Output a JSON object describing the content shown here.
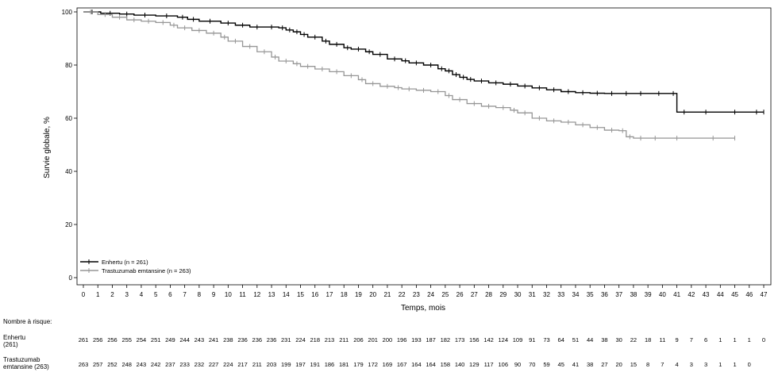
{
  "chart_data": {
    "type": "line",
    "title": "",
    "xlabel": "Temps, mois",
    "ylabel": "Survie globale, %",
    "xlim": [
      0,
      47
    ],
    "ylim": [
      0,
      100
    ],
    "xticks": [
      0,
      1,
      2,
      3,
      4,
      5,
      6,
      7,
      8,
      9,
      10,
      11,
      12,
      13,
      14,
      15,
      16,
      17,
      18,
      19,
      20,
      21,
      22,
      23,
      24,
      25,
      26,
      27,
      28,
      29,
      30,
      31,
      32,
      33,
      34,
      35,
      36,
      37,
      38,
      39,
      40,
      41,
      42,
      43,
      44,
      45,
      46,
      47
    ],
    "yticks": [
      0,
      20,
      40,
      60,
      80,
      100
    ],
    "grid": false,
    "legend_position": "bottom-left",
    "series": [
      {
        "name": "Enhertu (n = 261)",
        "color": "#000000",
        "x": [
          0,
          1.2,
          2.5,
          3.5,
          5.0,
          6.5,
          7.2,
          8.0,
          9.5,
          10.5,
          11.5,
          12.5,
          13.5,
          14.0,
          14.5,
          15.0,
          15.5,
          16.5,
          17.0,
          18.0,
          18.5,
          19.5,
          20.0,
          21.0,
          22.0,
          22.5,
          23.5,
          24.5,
          25.0,
          25.5,
          26.0,
          26.5,
          27.0,
          28.0,
          29.0,
          30.0,
          31.0,
          32.0,
          33.0,
          34.0,
          35.0,
          36.0,
          37.0,
          38.0,
          39.0,
          40.5,
          41.0,
          42.0,
          44.0,
          46.0,
          47.0
        ],
        "y": [
          100,
          99.5,
          99.2,
          98.8,
          98.5,
          98.0,
          97.2,
          96.5,
          95.8,
          95.0,
          94.3,
          94.3,
          94.0,
          93.2,
          92.5,
          91.5,
          90.5,
          89.0,
          87.8,
          86.5,
          86.0,
          85.0,
          84.0,
          82.3,
          81.6,
          80.8,
          80.0,
          78.6,
          77.8,
          76.4,
          75.4,
          74.6,
          74.0,
          73.3,
          72.8,
          72.1,
          71.4,
          70.7,
          70.0,
          69.6,
          69.4,
          69.3,
          69.3,
          69.3,
          69.3,
          69.3,
          62.3,
          62.3,
          62.3,
          62.3,
          62.3
        ]
      },
      {
        "name": "Trastuzumab emtansine (n = 263)",
        "color": "#969696",
        "x": [
          0,
          1.0,
          2.0,
          3.0,
          4.0,
          5.0,
          6.0,
          6.5,
          7.5,
          8.5,
          9.5,
          10.0,
          11.0,
          12.0,
          13.0,
          13.5,
          14.5,
          15.0,
          16.0,
          17.0,
          18.0,
          19.0,
          19.5,
          20.5,
          21.5,
          22.0,
          23.0,
          24.0,
          25.0,
          25.5,
          26.5,
          27.5,
          28.5,
          29.5,
          30.0,
          31.0,
          32.0,
          33.0,
          34.0,
          35.0,
          36.0,
          37.0,
          37.5,
          38.0,
          39.0,
          40.0,
          42.0,
          45.0
        ],
        "y": [
          100,
          99.0,
          98.0,
          97.0,
          96.5,
          96.0,
          95.0,
          94.0,
          93.0,
          92.0,
          90.5,
          89.0,
          87.0,
          85.0,
          83.0,
          81.5,
          80.5,
          79.5,
          78.5,
          77.5,
          76.0,
          74.5,
          73.0,
          72.0,
          71.5,
          71.0,
          70.5,
          70.0,
          68.5,
          67.0,
          65.5,
          64.5,
          64.0,
          63.0,
          62.0,
          60.0,
          59.0,
          58.5,
          57.5,
          56.5,
          55.5,
          55.3,
          53.0,
          52.5,
          52.5,
          52.5,
          52.5,
          52.5
        ]
      }
    ],
    "risk_table": {
      "title": "Nombre à risque:",
      "times": [
        0,
        1,
        2,
        3,
        4,
        5,
        6,
        7,
        8,
        9,
        10,
        11,
        12,
        13,
        14,
        15,
        16,
        17,
        18,
        19,
        20,
        21,
        22,
        23,
        24,
        25,
        26,
        27,
        28,
        29,
        30,
        31,
        32,
        33,
        34,
        35,
        36,
        37,
        38,
        39,
        40,
        41,
        42,
        43,
        44,
        45,
        46,
        47
      ],
      "rows": [
        {
          "label": "Enhertu\n(261)",
          "counts": [
            261,
            256,
            256,
            255,
            254,
            251,
            249,
            244,
            243,
            241,
            238,
            236,
            236,
            236,
            231,
            224,
            218,
            213,
            211,
            206,
            201,
            200,
            196,
            193,
            187,
            182,
            173,
            156,
            142,
            124,
            109,
            91,
            73,
            64,
            51,
            44,
            38,
            30,
            22,
            18,
            11,
            9,
            7,
            6,
            1,
            1,
            1,
            0
          ]
        },
        {
          "label": "Trastuzumab\nemtansine (263)",
          "counts": [
            263,
            257,
            252,
            248,
            243,
            242,
            237,
            233,
            232,
            227,
            224,
            217,
            211,
            203,
            199,
            197,
            191,
            186,
            181,
            179,
            172,
            169,
            167,
            164,
            164,
            158,
            140,
            129,
            117,
            106,
            90,
            70,
            59,
            45,
            41,
            38,
            27,
            20,
            15,
            8,
            7,
            4,
            3,
            3,
            1,
            1,
            0,
            ""
          ]
        }
      ]
    }
  }
}
